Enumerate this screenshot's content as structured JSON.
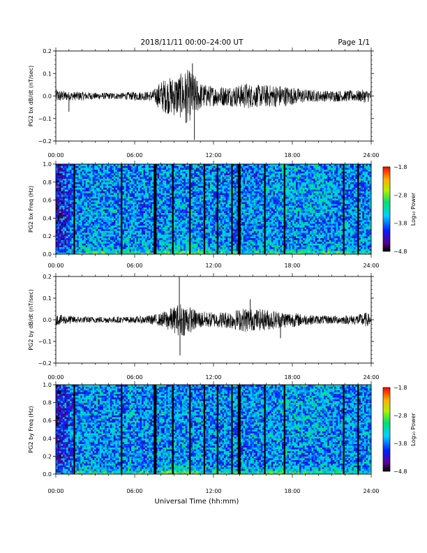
{
  "header": {
    "title": "2018/11/11  00:00–24:00 UT",
    "page": "Page 1/1"
  },
  "xlabel": "Universal Time (hh:mm)",
  "chart_data": [
    {
      "type": "line",
      "ylabel": "PG2 bx dB/dt (nT/sec)",
      "xlim": [
        0,
        24
      ],
      "ylim": [
        -0.2,
        0.2
      ],
      "x_tick_labels": [
        "00:00",
        "06:00",
        "12:00",
        "18:00",
        "24:00"
      ],
      "y_tick_labels": [
        "0.2",
        "0.1",
        "0.0",
        "−0.1",
        "−0.2"
      ],
      "envelope": {
        "hours": [
          0,
          1,
          2,
          3,
          4,
          5,
          6,
          7,
          7.5,
          8,
          8.5,
          9,
          9.5,
          10,
          10.5,
          11,
          11.5,
          12,
          13,
          14,
          14.5,
          15,
          16,
          17,
          18,
          19,
          20,
          21,
          22,
          23,
          23.5,
          24
        ],
        "amplitude": [
          0.03,
          0.02,
          0.02,
          0.015,
          0.015,
          0.015,
          0.02,
          0.02,
          0.03,
          0.07,
          0.08,
          0.09,
          0.1,
          0.12,
          0.1,
          0.06,
          0.05,
          0.045,
          0.045,
          0.05,
          0.06,
          0.05,
          0.05,
          0.05,
          0.04,
          0.03,
          0.025,
          0.025,
          0.025,
          0.025,
          0.03,
          0.025
        ]
      },
      "spikes": [
        {
          "hour": 10.4,
          "value": 0.145
        },
        {
          "hour": 10.55,
          "value": -0.195
        },
        {
          "hour": 9.9,
          "value": -0.12
        },
        {
          "hour": 1.0,
          "value": -0.07
        }
      ]
    },
    {
      "type": "heatmap",
      "ylabel": "PG2 bx Freq (Hz)",
      "xlim": [
        0,
        24
      ],
      "ylim": [
        0,
        1.0
      ],
      "x_tick_labels": [
        "00:00",
        "06:00",
        "12:00",
        "18:00",
        "24:00"
      ],
      "y_tick_labels": [
        "1.0",
        "0.8",
        "0.6",
        "0.4",
        "0.2",
        "0.0"
      ],
      "colorbar": {
        "label": "Log₁₀ Power",
        "range": [
          -4.8,
          -1.8
        ],
        "tick_labels": [
          "−1.8",
          "−2.8",
          "−3.8",
          "−4.8"
        ]
      },
      "gap_hours": [
        1.4,
        5.0,
        7.5,
        7.6,
        8.9,
        10.2,
        11.3,
        12.3,
        13.4,
        13.9,
        14.0,
        15.9,
        17.4,
        21.9,
        23.0
      ]
    },
    {
      "type": "line",
      "ylabel": "PG2 by dB/dt (nT/sec)",
      "xlim": [
        0,
        24
      ],
      "ylim": [
        -0.2,
        0.2
      ],
      "x_tick_labels": [
        "00:00",
        "06:00",
        "12:00",
        "18:00",
        "24:00"
      ],
      "y_tick_labels": [
        "0.2",
        "0.1",
        "0.0",
        "−0.1",
        "−0.2"
      ],
      "envelope": {
        "hours": [
          0,
          1,
          2,
          3,
          4,
          5,
          6,
          7,
          8,
          8.5,
          9,
          9.5,
          10,
          10.5,
          11,
          12,
          13,
          14,
          14.5,
          15,
          16,
          17,
          18,
          19,
          20,
          21,
          22,
          23,
          23.5,
          24
        ],
        "amplitude": [
          0.025,
          0.02,
          0.015,
          0.015,
          0.015,
          0.015,
          0.015,
          0.02,
          0.03,
          0.05,
          0.06,
          0.08,
          0.07,
          0.05,
          0.04,
          0.035,
          0.04,
          0.05,
          0.06,
          0.05,
          0.05,
          0.04,
          0.035,
          0.025,
          0.02,
          0.02,
          0.02,
          0.025,
          0.035,
          0.025
        ]
      },
      "spikes": [
        {
          "hour": 9.4,
          "value": 0.2
        },
        {
          "hour": 9.45,
          "value": -0.165
        },
        {
          "hour": 14.8,
          "value": 0.095
        },
        {
          "hour": 17.1,
          "value": -0.085
        }
      ]
    },
    {
      "type": "heatmap",
      "ylabel": "PG2 by Freq (Hz)",
      "xlim": [
        0,
        24
      ],
      "ylim": [
        0,
        1.0
      ],
      "x_tick_labels": [
        "00:00",
        "06:00",
        "12:00",
        "18:00",
        "24:00"
      ],
      "y_tick_labels": [
        "1.0",
        "0.8",
        "0.6",
        "0.4",
        "0.2",
        "0.0"
      ],
      "colorbar": {
        "label": "Log₁₀ Power",
        "range": [
          -4.8,
          -1.8
        ],
        "tick_labels": [
          "−1.8",
          "−2.8",
          "−3.8",
          "−4.8"
        ]
      },
      "gap_hours": [
        1.4,
        5.0,
        7.5,
        7.6,
        8.9,
        10.2,
        11.3,
        12.3,
        13.4,
        13.9,
        14.0,
        15.9,
        17.4,
        21.9,
        23.0
      ]
    }
  ]
}
